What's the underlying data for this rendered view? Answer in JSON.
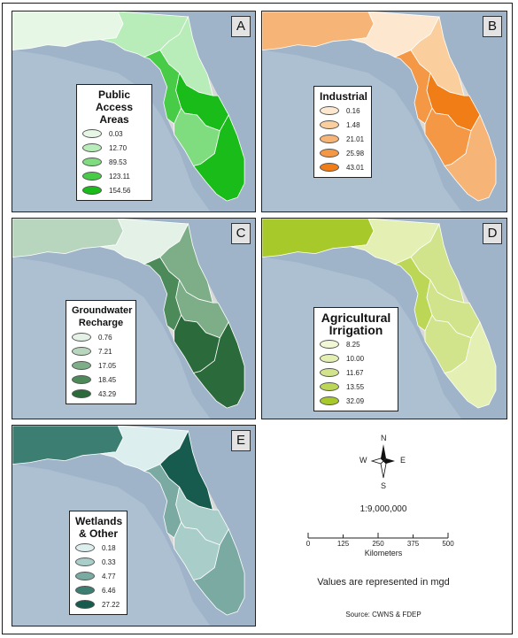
{
  "panels": [
    {
      "letter": "A",
      "legend_title": [
        "Public",
        "Access Areas"
      ],
      "classes": [
        "0.03",
        "12.70",
        "89.53",
        "123.11",
        "154.56"
      ],
      "colors": [
        "#e6f7e6",
        "#b8ecb8",
        "#7fdc7f",
        "#48cc48",
        "#19bc19"
      ],
      "region_class": [
        0,
        1,
        1,
        3,
        4,
        2,
        4
      ]
    },
    {
      "letter": "B",
      "legend_title": [
        "Industrial"
      ],
      "classes": [
        "0.16",
        "1.48",
        "21.01",
        "25.98",
        "43.01"
      ],
      "colors": [
        "#fde8cf",
        "#fbcf9d",
        "#f7b477",
        "#f49846",
        "#f07d15"
      ],
      "region_class": [
        2,
        0,
        1,
        3,
        4,
        3,
        2
      ]
    },
    {
      "letter": "C",
      "legend_title": [
        "Groundwater",
        "Recharge"
      ],
      "classes": [
        "0.76",
        "7.21",
        "17.05",
        "18.45",
        "43.29"
      ],
      "colors": [
        "#e3f1e6",
        "#b7d6bd",
        "#7dae88",
        "#4d8a5a",
        "#2b6a3a"
      ],
      "region_class": [
        1,
        0,
        2,
        3,
        2,
        4,
        4
      ]
    },
    {
      "letter": "D",
      "legend_title": [
        "Agricultural",
        "Irrigation"
      ],
      "classes": [
        "8.25",
        "10.00",
        "11.67",
        "13.55",
        "32.09"
      ],
      "colors": [
        "#f1f7d5",
        "#e3efb3",
        "#d1e48c",
        "#bcd755",
        "#a8c92a"
      ],
      "region_class": [
        4,
        1,
        2,
        3,
        2,
        2,
        1
      ]
    },
    {
      "letter": "E",
      "legend_title": [
        "Wetlands",
        "& Other"
      ],
      "classes": [
        "0.18",
        "0.33",
        "4.77",
        "6.46",
        "27.22"
      ],
      "colors": [
        "#dcefee",
        "#a9cdc8",
        "#7baaa3",
        "#3d7e73",
        "#175b4f"
      ],
      "region_class": [
        3,
        0,
        4,
        2,
        1,
        1,
        2
      ]
    }
  ],
  "compass": {
    "n": "N",
    "s": "S",
    "e": "E",
    "w": "W"
  },
  "scale": {
    "ratio": "1:9,000,000",
    "ticks": [
      "0",
      "125",
      "250",
      "375",
      "500"
    ],
    "unit": "Kilometers"
  },
  "note": "Values are represented in mgd",
  "source": "Source: CWNS & FDEP"
}
